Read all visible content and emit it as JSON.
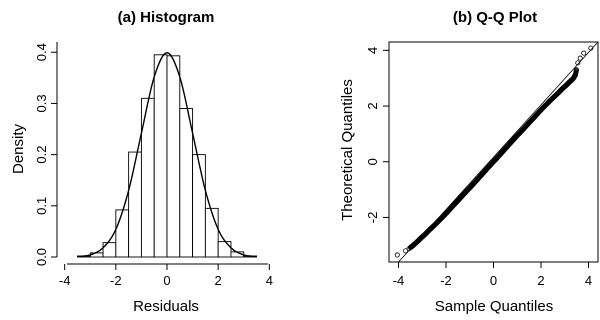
{
  "chart_data": [
    {
      "type": "bar",
      "title": "(a) Histogram",
      "xlabel": "Residuals",
      "ylabel": "Density",
      "xlim": [
        -4.3,
        4.3
      ],
      "ylim": [
        0,
        0.42
      ],
      "xticks": [
        -4,
        -2,
        0,
        2,
        4
      ],
      "yticks": [
        0.0,
        0.1,
        0.2,
        0.3,
        0.4
      ],
      "bins": [
        {
          "x0": -3.5,
          "x1": -3.0,
          "density": 0.002
        },
        {
          "x0": -3.0,
          "x1": -2.5,
          "density": 0.008
        },
        {
          "x0": -2.5,
          "x1": -2.0,
          "density": 0.028
        },
        {
          "x0": -2.0,
          "x1": -1.5,
          "density": 0.092
        },
        {
          "x0": -1.5,
          "x1": -1.0,
          "density": 0.205
        },
        {
          "x0": -1.0,
          "x1": -0.5,
          "density": 0.31
        },
        {
          "x0": -0.5,
          "x1": 0.0,
          "density": 0.395
        },
        {
          "x0": 0.0,
          "x1": 0.5,
          "density": 0.393
        },
        {
          "x0": 0.5,
          "x1": 1.0,
          "density": 0.29
        },
        {
          "x0": 1.0,
          "x1": 1.5,
          "density": 0.2
        },
        {
          "x0": 1.5,
          "x1": 2.0,
          "density": 0.095
        },
        {
          "x0": 2.0,
          "x1": 2.5,
          "density": 0.03
        },
        {
          "x0": 2.5,
          "x1": 3.0,
          "density": 0.01
        },
        {
          "x0": 3.0,
          "x1": 3.5,
          "density": 0.002
        }
      ],
      "density_curve": {
        "x": [
          -3.5,
          -3.0,
          -2.5,
          -2.0,
          -1.5,
          -1.0,
          -0.5,
          0.0,
          0.5,
          1.0,
          1.5,
          2.0,
          2.5,
          3.0,
          3.5
        ],
        "y": [
          0.001,
          0.004,
          0.018,
          0.054,
          0.13,
          0.242,
          0.352,
          0.399,
          0.352,
          0.242,
          0.13,
          0.054,
          0.018,
          0.004,
          0.001
        ]
      }
    },
    {
      "type": "scatter",
      "title": "(b) Q-Q Plot",
      "xlabel": "Sample Quantiles",
      "ylabel": "Theoretical Quantiles",
      "xlim": [
        -4.4,
        4.4
      ],
      "ylim": [
        -3.6,
        4.3
      ],
      "xticks": [
        -4,
        -2,
        0,
        2,
        4
      ],
      "yticks": [
        -2,
        0,
        2,
        4
      ],
      "reference_line": {
        "slope": 1,
        "intercept": 0
      },
      "points": {
        "x": [
          -4.05,
          -3.7,
          -3.55,
          -3.45,
          -3.35,
          -3.25,
          -3.15,
          -3.05,
          -2.95,
          -2.85,
          -2.75,
          -2.6,
          -2.45,
          -2.3,
          -2.1,
          -1.9,
          -1.7,
          -1.5,
          -1.3,
          -1.1,
          -0.9,
          -0.7,
          -0.5,
          -0.3,
          -0.1,
          0.1,
          0.3,
          0.5,
          0.7,
          0.9,
          1.1,
          1.3,
          1.5,
          1.7,
          1.9,
          2.1,
          2.3,
          2.45,
          2.6,
          2.75,
          2.85,
          2.95,
          3.05,
          3.15,
          3.25,
          3.35,
          3.45,
          3.55,
          3.65,
          3.8,
          4.1
        ],
        "y": [
          -3.35,
          -3.2,
          -3.12,
          -3.05,
          -2.98,
          -2.9,
          -2.82,
          -2.74,
          -2.66,
          -2.58,
          -2.49,
          -2.37,
          -2.25,
          -2.12,
          -1.95,
          -1.77,
          -1.58,
          -1.4,
          -1.21,
          -1.03,
          -0.85,
          -0.66,
          -0.47,
          -0.28,
          -0.09,
          0.09,
          0.28,
          0.47,
          0.66,
          0.85,
          1.03,
          1.21,
          1.4,
          1.58,
          1.77,
          1.95,
          2.12,
          2.25,
          2.37,
          2.49,
          2.58,
          2.66,
          2.74,
          2.82,
          2.9,
          2.98,
          3.12,
          3.55,
          3.72,
          3.9,
          4.08
        ]
      }
    }
  ]
}
